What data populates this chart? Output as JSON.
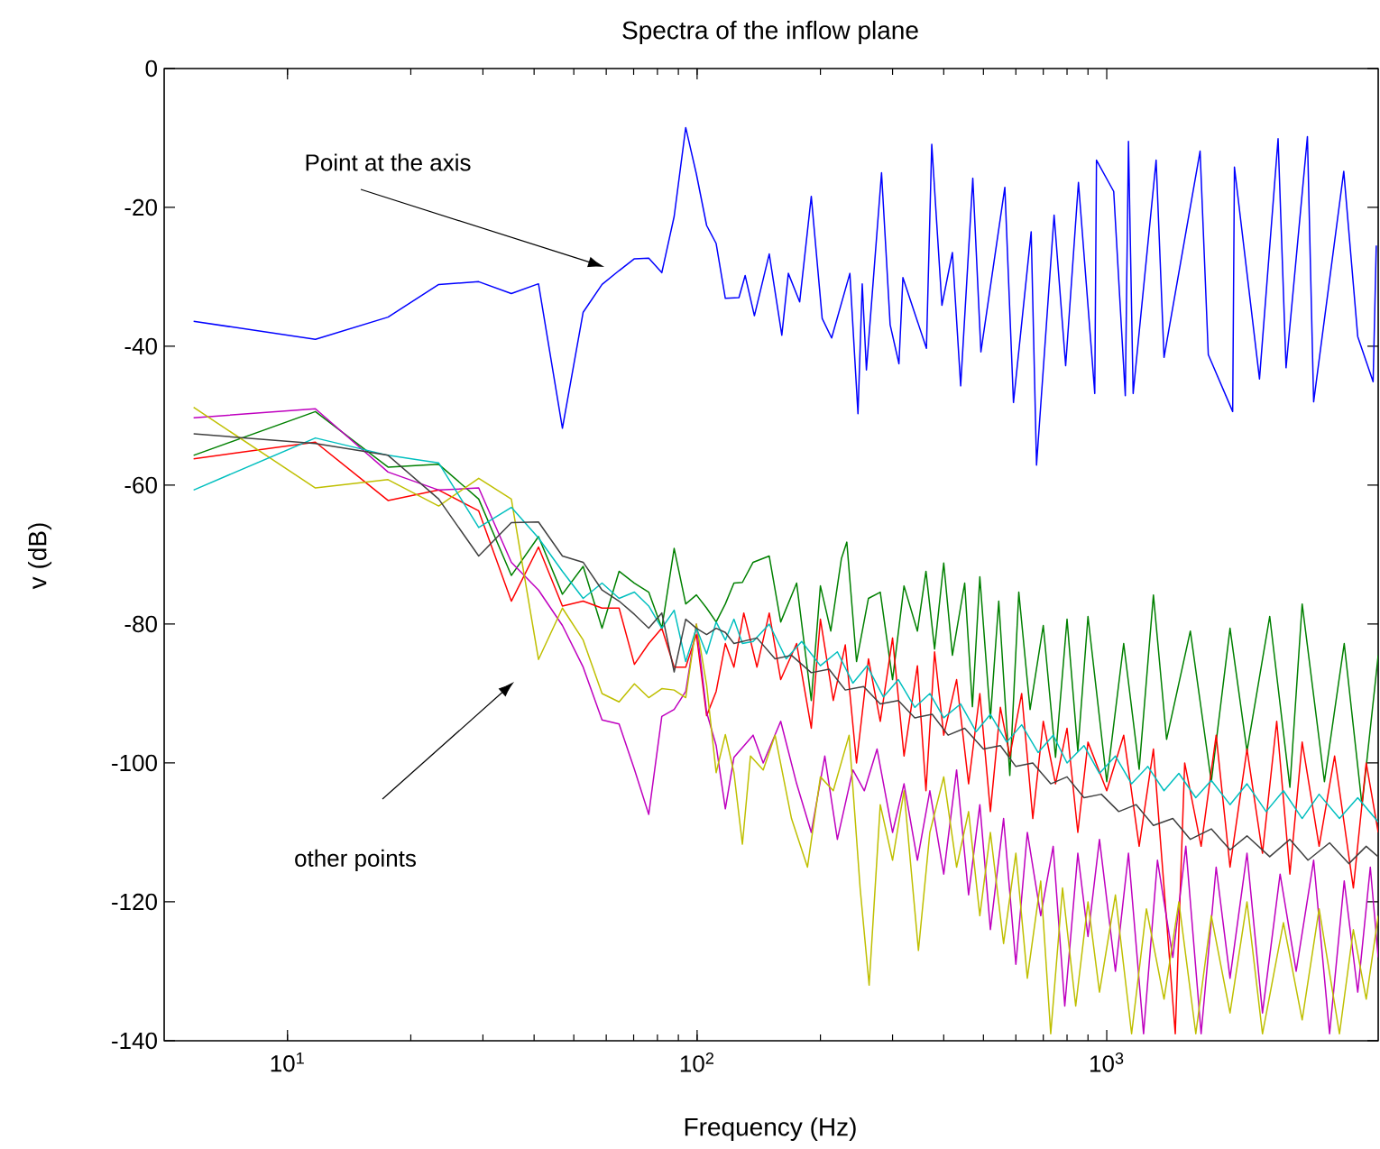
{
  "chart_data": {
    "type": "line",
    "title": "Spectra of the inflow plane",
    "xlabel": "Frequency (Hz)",
    "ylabel": "v (dB)",
    "log": "x",
    "xlim": [
      5,
      4600
    ],
    "ylim": [
      -140,
      0
    ],
    "xticks": [
      {
        "value": 10,
        "label": "10$^{1}$"
      },
      {
        "value": 100,
        "label": "10$^{2}$"
      },
      {
        "value": 1000,
        "label": "10$^{3}$"
      }
    ],
    "yticks": [
      -140,
      -120,
      -100,
      -80,
      -60,
      -40,
      -20,
      0
    ],
    "annotations": [
      "Point at the axis",
      "other points"
    ],
    "series": [
      {
        "color": "#0000ff",
        "x": [
          5.9,
          11.7,
          17.6,
          23.4,
          29.3,
          35.2,
          41,
          46.9,
          52.7,
          58.6,
          64.5,
          70.3,
          76.2,
          82,
          87.9,
          93.8,
          99.6,
          105.5,
          111.3,
          117.2,
          126.5,
          131,
          138,
          150,
          161,
          167,
          178,
          190,
          202,
          213,
          236,
          247,
          253,
          259,
          282,
          296,
          311,
          318,
          363,
          374,
          396,
          420,
          440,
          471,
          493,
          564,
          592,
          654,
          674,
          744,
          794,
          853,
          935,
          944,
          1040,
          1110,
          1130,
          1160,
          1320,
          1380,
          1690,
          1770,
          2030,
          2050,
          2360,
          2620,
          2740,
          3090,
          3200,
          3790,
          4100,
          4470,
          4550
        ],
        "values": [
          -36.4,
          -39,
          -35.8,
          -31.1,
          -30.7,
          -32.4,
          -31,
          -51.8,
          -35.1,
          -31.1,
          -29.1,
          -27.4,
          -27.3,
          -29.4,
          -21.3,
          -8.5,
          -15.2,
          -22.6,
          -25.2,
          -33.1,
          -33,
          -29.8,
          -35.6,
          -26.7,
          -38.4,
          -29.5,
          -33.6,
          -18.4,
          -36,
          -38.8,
          -29.5,
          -49.7,
          -31,
          -43.4,
          -15,
          -36.9,
          -42.5,
          -30.1,
          -40.3,
          -10.9,
          -34.1,
          -26.5,
          -45.7,
          -15.8,
          -40.8,
          -17.1,
          -48.1,
          -23.5,
          -57.1,
          -21.1,
          -42.8,
          -16.4,
          -46.8,
          -13.2,
          -17.7,
          -47.1,
          -10.5,
          -46.8,
          -13.2,
          -41.6,
          -11.9,
          -41.2,
          -49.4,
          -14.2,
          -44.7,
          -10.1,
          -43.1,
          -9.8,
          -48,
          -14.8,
          -38.6,
          -45.1,
          -25.5
        ]
      },
      {
        "color": "#008000",
        "x": [
          5.9,
          11.7,
          17.6,
          23.4,
          29.3,
          35.2,
          41,
          46.9,
          52.7,
          58.6,
          64.5,
          70.3,
          76.2,
          82,
          87.9,
          93.8,
          99.6,
          105.5,
          111.3,
          117.2,
          123,
          129,
          137,
          150,
          160,
          175,
          190,
          200,
          212,
          225,
          232,
          245,
          262,
          280,
          300,
          320,
          345,
          362,
          380,
          400,
          420,
          450,
          470,
          490,
          520,
          545,
          580,
          610,
          650,
          700,
          750,
          800,
          850,
          900,
          1000,
          1100,
          1200,
          1300,
          1400,
          1600,
          1800,
          2000,
          2200,
          2500,
          2800,
          3000,
          3400,
          3800,
          4200,
          4600
        ],
        "values": [
          -55.7,
          -49.4,
          -57.4,
          -57,
          -62,
          -73,
          -67.4,
          -75.7,
          -71.7,
          -80.6,
          -72.4,
          -74.1,
          -75.4,
          -80.6,
          -69.1,
          -77.1,
          -75.8,
          -77.7,
          -79.7,
          -77.1,
          -74.1,
          -74,
          -71.1,
          -70.2,
          -79.7,
          -74.1,
          -91,
          -74.5,
          -81,
          -70.6,
          -68.2,
          -85.4,
          -76.3,
          -75.4,
          -88,
          -74.5,
          -81,
          -72.4,
          -83.6,
          -71.2,
          -84.5,
          -74.1,
          -91.9,
          -73.2,
          -93.6,
          -76.7,
          -101.8,
          -75.4,
          -92.3,
          -80.2,
          -99.2,
          -79.3,
          -98.3,
          -78.9,
          -102.7,
          -82.8,
          -100.9,
          -75.8,
          -96.6,
          -81,
          -102.7,
          -80.6,
          -98.3,
          -78.9,
          -103.5,
          -77.1,
          -102.7,
          -82.8,
          -106.1,
          -84.5
        ]
      },
      {
        "color": "#ff0000",
        "x": [
          5.9,
          11.7,
          17.6,
          23.4,
          29.3,
          35.2,
          41,
          46.9,
          52.7,
          58.6,
          64.5,
          70.3,
          76.2,
          82,
          87.9,
          93.8,
          99.6,
          105.5,
          111.3,
          117.2,
          123,
          130,
          140,
          150,
          160,
          175,
          190,
          200,
          215,
          230,
          245,
          262,
          280,
          300,
          320,
          345,
          362,
          380,
          400,
          430,
          460,
          490,
          520,
          550,
          580,
          620,
          660,
          700,
          750,
          800,
          850,
          900,
          1000,
          1100,
          1200,
          1300,
          1470,
          1550,
          1700,
          1850,
          2000,
          2200,
          2400,
          2600,
          2800,
          3000,
          3300,
          3600,
          4000,
          4300,
          4600
        ],
        "values": [
          -56.2,
          -53.8,
          -62.2,
          -60.7,
          -63.7,
          -76.7,
          -68.9,
          -77.4,
          -76.7,
          -77.7,
          -77.7,
          -85.8,
          -82.8,
          -80.6,
          -86.2,
          -86.2,
          -81.5,
          -93.2,
          -89.7,
          -82.8,
          -86.2,
          -78.4,
          -86.2,
          -78.4,
          -88,
          -82.8,
          -95,
          -79.3,
          -91,
          -83,
          -100,
          -85,
          -94,
          -82,
          -99,
          -86,
          -104,
          -84,
          -96,
          -88,
          -103,
          -90,
          -107,
          -92,
          -99,
          -90,
          -108,
          -94,
          -103,
          -95,
          -110,
          -97,
          -104,
          -96,
          -112,
          -98,
          -139,
          -100,
          -112,
          -96,
          -115,
          -98,
          -113,
          -94,
          -116,
          -97,
          -112,
          -99,
          -118,
          -100,
          -110
        ]
      },
      {
        "color": "#bf00bf",
        "x": [
          5.9,
          11.7,
          17.6,
          23.4,
          29.3,
          35.2,
          41,
          46.9,
          52.7,
          58.6,
          64.5,
          70.3,
          76.2,
          82,
          87.9,
          93.8,
          99.6,
          105.5,
          111.3,
          117.2,
          123,
          137,
          145,
          160,
          175,
          190,
          205,
          220,
          240,
          256,
          275,
          300,
          320,
          345,
          370,
          400,
          430,
          460,
          490,
          520,
          560,
          600,
          640,
          690,
          740,
          790,
          850,
          900,
          960,
          1050,
          1130,
          1230,
          1330,
          1450,
          1560,
          1700,
          1850,
          2000,
          2200,
          2400,
          2650,
          2900,
          3200,
          3500,
          3800,
          4100,
          4400,
          4600
        ],
        "values": [
          -50.3,
          -49,
          -58.1,
          -60.7,
          -60.4,
          -71.1,
          -75.1,
          -80.2,
          -86.2,
          -93.8,
          -94.4,
          -100.9,
          -107.4,
          -93.3,
          -92.3,
          -89.7,
          -80,
          -92.7,
          -97.5,
          -106.6,
          -99.2,
          -96,
          -100,
          -94,
          -103,
          -110,
          -99,
          -111,
          -101,
          -104,
          -98,
          -110,
          -103,
          -114,
          -104,
          -116,
          -101,
          -119,
          -106,
          -124,
          -108,
          -129,
          -110,
          -122,
          -112,
          -135,
          -113,
          -125,
          -111,
          -130,
          -113,
          -139,
          -114,
          -128,
          -112,
          -139,
          -115,
          -131,
          -113,
          -136,
          -116,
          -130,
          -114,
          -139,
          -117,
          -133,
          -115,
          -128
        ]
      },
      {
        "color": "#bfbf00",
        "x": [
          5.9,
          11.7,
          17.6,
          23.4,
          29.3,
          35.2,
          41,
          46.9,
          52.7,
          58.6,
          64.5,
          70.3,
          76.2,
          82,
          87.9,
          93.8,
          99.6,
          105.5,
          111.3,
          117.2,
          123,
          129,
          135,
          145,
          155,
          170,
          186,
          200,
          215,
          235,
          250,
          263,
          280,
          300,
          320,
          347,
          370,
          400,
          430,
          460,
          490,
          520,
          560,
          600,
          640,
          690,
          730,
          780,
          840,
          900,
          960,
          1050,
          1150,
          1250,
          1380,
          1500,
          1650,
          1800,
          2000,
          2200,
          2400,
          2700,
          3000,
          3300,
          3700,
          4000,
          4300,
          4600
        ],
        "values": [
          -48.8,
          -60.4,
          -59.2,
          -63,
          -59,
          -62,
          -85.1,
          -77.7,
          -82.3,
          -90,
          -91.2,
          -88.6,
          -90.6,
          -89.3,
          -89.5,
          -90.6,
          -80,
          -88.8,
          -101.4,
          -95.9,
          -101.4,
          -111.7,
          -99,
          -101,
          -96,
          -108,
          -115,
          -102,
          -104,
          -96,
          -118,
          -132,
          -106,
          -114,
          -104,
          -127,
          -110,
          -102,
          -115,
          -107,
          -122,
          -110,
          -126,
          -113,
          -131,
          -117,
          -139,
          -118,
          -135,
          -120,
          -133,
          -119,
          -139,
          -121,
          -134,
          -120,
          -139,
          -122,
          -136,
          -120,
          -139,
          -123,
          -137,
          -121,
          -139,
          -124,
          -134,
          -122
        ]
      },
      {
        "color": "#00bfbf",
        "x": [
          5.9,
          11.7,
          17.6,
          23.4,
          29.3,
          35.2,
          41,
          46.9,
          52.7,
          58.6,
          64.5,
          70.3,
          76.2,
          82,
          87.9,
          93.8,
          99.6,
          105.5,
          111.3,
          117.2,
          123,
          129,
          137,
          150,
          165,
          180,
          200,
          220,
          240,
          260,
          285,
          310,
          340,
          370,
          400,
          440,
          480,
          520,
          570,
          620,
          680,
          740,
          800,
          880,
          960,
          1050,
          1150,
          1260,
          1380,
          1500,
          1650,
          1800,
          2000,
          2200,
          2450,
          2700,
          3000,
          3300,
          3700,
          4100,
          4600
        ],
        "values": [
          -60.7,
          -53.2,
          -55.7,
          -56.8,
          -66.1,
          -63.2,
          -67.6,
          -72.4,
          -76.3,
          -74.1,
          -76.3,
          -75.4,
          -77.4,
          -80.6,
          -78,
          -85.4,
          -80.6,
          -84.3,
          -79.7,
          -82.3,
          -79.3,
          -82.8,
          -82.5,
          -80,
          -85,
          -82.5,
          -86,
          -84,
          -88.5,
          -86,
          -90.5,
          -88,
          -92,
          -90,
          -93.5,
          -91.5,
          -95.5,
          -93,
          -97,
          -94.5,
          -98.5,
          -96,
          -100,
          -97.5,
          -101.5,
          -99,
          -103,
          -100.5,
          -104,
          -101.5,
          -105,
          -102.5,
          -106,
          -103,
          -107,
          -104,
          -108,
          -104.5,
          -108,
          -105,
          -108.5
        ]
      },
      {
        "color": "#404040",
        "x": [
          5.9,
          11.7,
          17.6,
          23.4,
          29.3,
          35.2,
          41,
          46.9,
          52.7,
          58.6,
          64.5,
          70.3,
          76.2,
          82,
          87.9,
          93.8,
          99.6,
          105.5,
          111.3,
          117.2,
          123,
          140,
          155,
          170,
          190,
          210,
          230,
          255,
          280,
          310,
          340,
          375,
          410,
          450,
          500,
          550,
          600,
          660,
          730,
          800,
          880,
          970,
          1070,
          1180,
          1300,
          1450,
          1600,
          1800,
          2000,
          2200,
          2500,
          2800,
          3100,
          3500,
          3900,
          4300,
          4600
        ],
        "values": [
          -52.6,
          -54,
          -55.7,
          -62,
          -70.2,
          -65.4,
          -65.3,
          -70.2,
          -71.1,
          -75.1,
          -76.7,
          -78.6,
          -80.6,
          -78.4,
          -86.9,
          -79.3,
          -80.6,
          -81.5,
          -80.6,
          -81.2,
          -82.8,
          -82,
          -85,
          -84.5,
          -87,
          -86.5,
          -89.5,
          -89,
          -91.5,
          -91,
          -93.5,
          -93,
          -96,
          -95,
          -98,
          -97.5,
          -100.5,
          -100,
          -103,
          -102,
          -105,
          -104.5,
          -107,
          -106,
          -109,
          -108,
          -111,
          -109.5,
          -112.5,
          -110.5,
          -113.5,
          -111,
          -114,
          -111.5,
          -114.5,
          -112,
          -113.5
        ]
      }
    ]
  }
}
